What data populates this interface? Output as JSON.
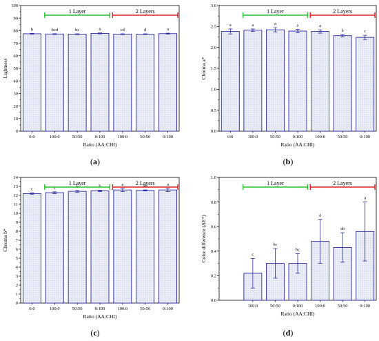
{
  "chart_data": [
    {
      "panel_label": "(a)",
      "type": "bar",
      "categories": [
        "0:0",
        "100:0",
        "50:50",
        "0:100",
        "100:0",
        "50:50",
        "0:100"
      ],
      "values": [
        77.5,
        77.3,
        77.2,
        77.8,
        77.2,
        77.2,
        77.6
      ],
      "errors": [
        0.3,
        0.3,
        0.3,
        0.4,
        0.3,
        0.3,
        0.4
      ],
      "letters": [
        "b",
        "bcd",
        "bc",
        "a",
        "cd",
        "d",
        "a"
      ],
      "ylabel": "Lightness",
      "xlabel": "Ratio (AA:CHI)",
      "ylim": [
        0,
        100
      ],
      "yticks": [
        0,
        10,
        20,
        30,
        40,
        50,
        60,
        70,
        80,
        90,
        100
      ],
      "ytick_labels": [
        "0",
        "10",
        "20",
        "30",
        "40",
        "50",
        "60",
        "70",
        "80",
        "90",
        "100"
      ],
      "groups": [
        {
          "label": "1 Layer",
          "from": 1,
          "to": 3,
          "color": "#22c02a"
        },
        {
          "label": "2 Layers",
          "from": 4,
          "to": 6,
          "color": "#dd2020"
        }
      ],
      "grid": false
    },
    {
      "panel_label": "(b)",
      "type": "bar",
      "categories": [
        "0:0",
        "100:0",
        "50:50",
        "0:100",
        "100:0",
        "50:50",
        "0:100"
      ],
      "values": [
        2.38,
        2.41,
        2.42,
        2.39,
        2.38,
        2.28,
        2.24
      ],
      "errors": [
        0.06,
        0.03,
        0.05,
        0.04,
        0.04,
        0.03,
        0.05
      ],
      "letters": [
        "a",
        "a",
        "a",
        "a",
        "a",
        "b",
        "c"
      ],
      "ylabel": "Chroma a*",
      "xlabel": "Ratio (AA:CHI)",
      "ylim": [
        0,
        3.0
      ],
      "yticks": [
        0,
        0.5,
        1.0,
        1.5,
        2.0,
        2.5,
        3.0
      ],
      "ytick_labels": [
        "0.0",
        "0.5",
        "1.0",
        "1.5",
        "2.0",
        "2.5",
        "3.0"
      ],
      "groups": [
        {
          "label": "1 Layer",
          "from": 1,
          "to": 3,
          "color": "#22c02a"
        },
        {
          "label": "2 Layers",
          "from": 4,
          "to": 6,
          "color": "#dd2020"
        }
      ],
      "grid": false
    },
    {
      "panel_label": "(c)",
      "type": "bar",
      "categories": [
        "0:0",
        "100:0",
        "50:50",
        "0:100",
        "100:0",
        "50:50",
        "0:100"
      ],
      "values": [
        12.2,
        12.3,
        12.45,
        12.5,
        12.6,
        12.55,
        12.6
      ],
      "errors": [
        0.08,
        0.1,
        0.1,
        0.08,
        0.18,
        0.06,
        0.18
      ],
      "letters": [
        "c",
        "c",
        "b",
        "b",
        "a",
        "ab",
        "a"
      ],
      "ylabel": "Chroma b*",
      "xlabel": "Ratio (AA:CHI)",
      "ylim": [
        0,
        14
      ],
      "yticks": [
        0,
        1,
        2,
        3,
        4,
        5,
        6,
        7,
        8,
        9,
        10,
        11,
        12,
        13,
        14
      ],
      "ytick_labels": [
        "0",
        "1",
        "2",
        "3",
        "4",
        "5",
        "6",
        "7",
        "8",
        "9",
        "10",
        "11",
        "12",
        "13",
        "14"
      ],
      "groups": [
        {
          "label": "1 Layer",
          "from": 1,
          "to": 3,
          "color": "#22c02a"
        },
        {
          "label": "2 Layers",
          "from": 4,
          "to": 6,
          "color": "#dd2020"
        }
      ],
      "grid": false
    },
    {
      "panel_label": "(d)",
      "type": "bar",
      "categories": [
        "100:0",
        "50:50",
        "0:100",
        "100:0",
        "50:50",
        "0:100"
      ],
      "values": [
        0.22,
        0.3,
        0.3,
        0.48,
        0.43,
        0.56
      ],
      "errors": [
        0.12,
        0.12,
        0.08,
        0.18,
        0.12,
        0.24
      ],
      "letters": [
        "c",
        "bc",
        "bc",
        "a",
        "ab",
        "a"
      ],
      "ylabel": "Color difference (ΔE*)",
      "xlabel": "Ratio (AA:CHI)",
      "ylim": [
        0,
        1.0
      ],
      "yticks": [
        0,
        0.2,
        0.4,
        0.6,
        0.8,
        1.0
      ],
      "ytick_labels": [
        "0.0",
        "0.2",
        "0.4",
        "0.6",
        "0.8",
        "1.0"
      ],
      "groups": [
        {
          "label": "1 Layer",
          "from": 0,
          "to": 2,
          "color": "#22c02a"
        },
        {
          "label": "2 Layers",
          "from": 3,
          "to": 5,
          "color": "#dd2020"
        }
      ],
      "grid": false
    }
  ],
  "style": {
    "bar_fill": "#ecedf8",
    "bar_stroke": "#2a2a9e",
    "error_color": "#2a2a9e"
  }
}
